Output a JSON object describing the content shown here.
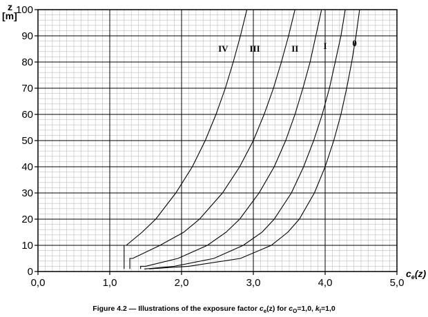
{
  "chart_data": {
    "type": "line",
    "xlim": [
      0,
      5
    ],
    "ylim": [
      0,
      100
    ],
    "x_ticks": [
      "0,0",
      "1,0",
      "2,0",
      "3,0",
      "4,0",
      "5,0"
    ],
    "y_ticks": [
      "0",
      "10",
      "20",
      "30",
      "40",
      "50",
      "60",
      "70",
      "80",
      "90",
      "100"
    ],
    "xlabel": "ce(z)",
    "ylabel_line1": "z",
    "ylabel_line2": "[m]",
    "grid": true,
    "series": [
      {
        "name": "IV",
        "label_at": [
          2.58,
          84
        ],
        "points": [
          [
            1.2,
            1
          ],
          [
            1.2,
            10
          ],
          [
            1.23,
            10
          ],
          [
            1.45,
            15
          ],
          [
            1.64,
            20
          ],
          [
            1.92,
            30
          ],
          [
            2.15,
            40
          ],
          [
            2.33,
            50
          ],
          [
            2.48,
            60
          ],
          [
            2.61,
            70
          ],
          [
            2.72,
            80
          ],
          [
            2.82,
            90
          ],
          [
            2.91,
            100
          ]
        ]
      },
      {
        "name": "III",
        "label_at": [
          3.02,
          84
        ],
        "points": [
          [
            1.28,
            1
          ],
          [
            1.28,
            5
          ],
          [
            1.32,
            5
          ],
          [
            1.7,
            10
          ],
          [
            2.03,
            15
          ],
          [
            2.25,
            20
          ],
          [
            2.57,
            30
          ],
          [
            2.81,
            40
          ],
          [
            3.0,
            50
          ],
          [
            3.15,
            60
          ],
          [
            3.28,
            70
          ],
          [
            3.39,
            80
          ],
          [
            3.49,
            90
          ],
          [
            3.58,
            100
          ]
        ]
      },
      {
        "name": "II",
        "label_at": [
          3.58,
          84
        ],
        "points": [
          [
            1.43,
            1
          ],
          [
            1.43,
            2
          ],
          [
            1.5,
            2
          ],
          [
            1.95,
            5
          ],
          [
            2.36,
            10
          ],
          [
            2.62,
            15
          ],
          [
            2.81,
            20
          ],
          [
            3.08,
            30
          ],
          [
            3.29,
            40
          ],
          [
            3.45,
            50
          ],
          [
            3.58,
            60
          ],
          [
            3.69,
            70
          ],
          [
            3.79,
            80
          ],
          [
            3.87,
            90
          ],
          [
            3.95,
            100
          ]
        ]
      },
      {
        "name": "I",
        "label_at": [
          4.0,
          85
        ],
        "points": [
          [
            1.48,
            1
          ],
          [
            1.5,
            1
          ],
          [
            1.9,
            2
          ],
          [
            2.45,
            5
          ],
          [
            2.86,
            10
          ],
          [
            3.12,
            15
          ],
          [
            3.29,
            20
          ],
          [
            3.53,
            30
          ],
          [
            3.7,
            40
          ],
          [
            3.84,
            50
          ],
          [
            3.96,
            60
          ],
          [
            4.06,
            70
          ],
          [
            4.14,
            80
          ],
          [
            4.22,
            90
          ],
          [
            4.28,
            100
          ]
        ]
      },
      {
        "name": "0",
        "label_at": [
          4.41,
          86
        ],
        "points": [
          [
            1.55,
            1
          ],
          [
            2.1,
            2
          ],
          [
            2.82,
            5
          ],
          [
            3.25,
            10
          ],
          [
            3.48,
            15
          ],
          [
            3.64,
            20
          ],
          [
            3.85,
            30
          ],
          [
            4.0,
            40
          ],
          [
            4.12,
            50
          ],
          [
            4.22,
            60
          ],
          [
            4.3,
            70
          ],
          [
            4.37,
            80
          ],
          [
            4.43,
            90
          ],
          [
            4.48,
            100
          ]
        ]
      }
    ]
  },
  "caption": {
    "prefix": "Figure 4.2 — Illustrations of the exposure factor ",
    "c": "c",
    "e_sub": "e",
    "z_part": "(z)",
    "for_text": " for ",
    "o_sub": "O",
    "co_val": "=1,0, ",
    "k": "k",
    "l_sub": "l",
    "kl_val": "=1,0"
  }
}
